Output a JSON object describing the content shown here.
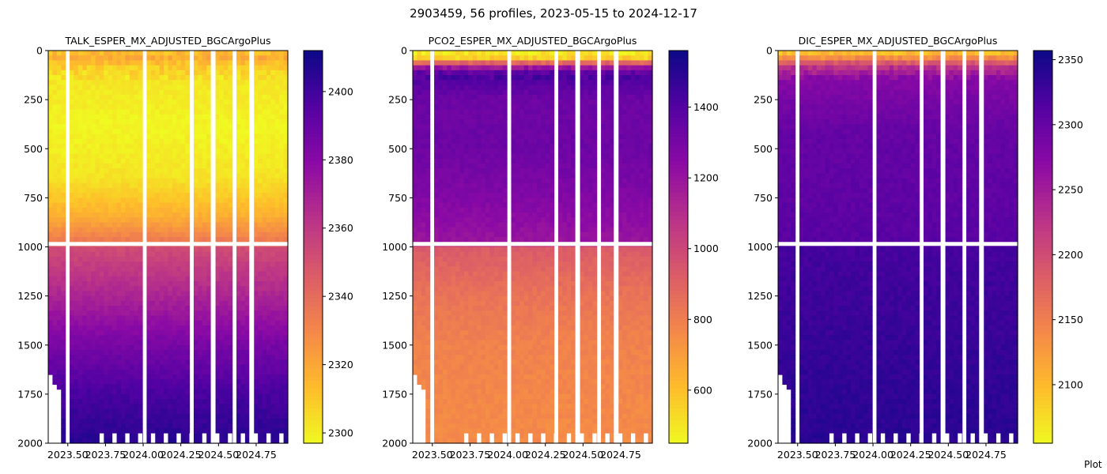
{
  "figure": {
    "suptitle": "2903459, 56 profiles, 2023-05-15 to 2024-12-17",
    "credit": "Plot"
  },
  "chart_data": [
    {
      "type": "heatmap",
      "title": "TALK_ESPER_MX_ADJUSTED_BGCArgoPlus",
      "xlabel": "",
      "ylabel": "",
      "x_range": [
        2023.37,
        2024.96
      ],
      "xticks": [
        2023.5,
        2023.75,
        2024.0,
        2024.25,
        2024.5,
        2024.75
      ],
      "xtick_labels": [
        "2023.50",
        "2023.75",
        "2024.00",
        "2024.25",
        "2024.50",
        "2024.75"
      ],
      "ylim": [
        2000,
        0
      ],
      "yticks": [
        0,
        250,
        500,
        750,
        1000,
        1250,
        1500,
        1750,
        2000
      ],
      "ytick_labels": [
        "0",
        "250",
        "500",
        "750",
        "1000",
        "1250",
        "1500",
        "1750",
        "2000"
      ],
      "colormap": "plasma_r",
      "colorbar_range": [
        2297,
        2412
      ],
      "colorbar_ticks": [
        2300,
        2320,
        2340,
        2360,
        2380,
        2400
      ],
      "colorbar_tick_labels": [
        "2300",
        "2320",
        "2340",
        "2360",
        "2380",
        "2400"
      ],
      "depth_profile": [
        {
          "depth": 0,
          "value": 2312
        },
        {
          "depth": 40,
          "value": 2318
        },
        {
          "depth": 80,
          "value": 2310
        },
        {
          "depth": 150,
          "value": 2302
        },
        {
          "depth": 400,
          "value": 2298
        },
        {
          "depth": 650,
          "value": 2303
        },
        {
          "depth": 850,
          "value": 2318
        },
        {
          "depth": 970,
          "value": 2335
        },
        {
          "depth": 1000,
          "value": 2352
        },
        {
          "depth": 1250,
          "value": 2368
        },
        {
          "depth": 1500,
          "value": 2385
        },
        {
          "depth": 1750,
          "value": 2398
        },
        {
          "depth": 2000,
          "value": 2406
        }
      ]
    },
    {
      "type": "heatmap",
      "title": "PCO2_ESPER_MX_ADJUSTED_BGCArgoPlus",
      "xlabel": "",
      "ylabel": "",
      "x_range": [
        2023.37,
        2024.96
      ],
      "xticks": [
        2023.5,
        2023.75,
        2024.0,
        2024.25,
        2024.5,
        2024.75
      ],
      "xtick_labels": [
        "2023.50",
        "2023.75",
        "2024.00",
        "2024.25",
        "2024.50",
        "2024.75"
      ],
      "ylim": [
        2000,
        0
      ],
      "yticks": [
        0,
        250,
        500,
        750,
        1000,
        1250,
        1500,
        1750,
        2000
      ],
      "ytick_labels": [
        "0",
        "250",
        "500",
        "750",
        "1000",
        "1250",
        "1500",
        "1750",
        "2000"
      ],
      "colormap": "plasma_r",
      "colorbar_range": [
        450,
        1560
      ],
      "colorbar_ticks": [
        600,
        800,
        1000,
        1200,
        1400
      ],
      "colorbar_tick_labels": [
        "600",
        "800",
        "1000",
        "1200",
        "1400"
      ],
      "depth_profile": [
        {
          "depth": 0,
          "value": 470
        },
        {
          "depth": 40,
          "value": 560
        },
        {
          "depth": 80,
          "value": 1150
        },
        {
          "depth": 120,
          "value": 1420
        },
        {
          "depth": 250,
          "value": 1330
        },
        {
          "depth": 500,
          "value": 1330
        },
        {
          "depth": 750,
          "value": 1270
        },
        {
          "depth": 970,
          "value": 1200
        },
        {
          "depth": 1000,
          "value": 930
        },
        {
          "depth": 1250,
          "value": 840
        },
        {
          "depth": 1500,
          "value": 790
        },
        {
          "depth": 1750,
          "value": 770
        },
        {
          "depth": 2000,
          "value": 760
        }
      ]
    },
    {
      "type": "heatmap",
      "title": "DIC_ESPER_MX_ADJUSTED_BGCArgoPlus",
      "xlabel": "",
      "ylabel": "",
      "x_range": [
        2023.37,
        2024.96
      ],
      "xticks": [
        2023.5,
        2023.75,
        2024.0,
        2024.25,
        2024.5,
        2024.75
      ],
      "xtick_labels": [
        "2023.50",
        "2023.75",
        "2024.00",
        "2024.25",
        "2024.50",
        "2024.75"
      ],
      "ylim": [
        2000,
        0
      ],
      "yticks": [
        0,
        250,
        500,
        750,
        1000,
        1250,
        1500,
        1750,
        2000
      ],
      "ytick_labels": [
        "0",
        "250",
        "500",
        "750",
        "1000",
        "1250",
        "1500",
        "1750",
        "2000"
      ],
      "colormap": "plasma_r",
      "colorbar_range": [
        2055,
        2357
      ],
      "colorbar_ticks": [
        2100,
        2150,
        2200,
        2250,
        2300,
        2350
      ],
      "colorbar_tick_labels": [
        "2100",
        "2150",
        "2200",
        "2250",
        "2300",
        "2350"
      ],
      "depth_profile": [
        {
          "depth": 0,
          "value": 2080
        },
        {
          "depth": 40,
          "value": 2140
        },
        {
          "depth": 80,
          "value": 2225
        },
        {
          "depth": 150,
          "value": 2275
        },
        {
          "depth": 400,
          "value": 2300
        },
        {
          "depth": 750,
          "value": 2305
        },
        {
          "depth": 970,
          "value": 2310
        },
        {
          "depth": 1000,
          "value": 2322
        },
        {
          "depth": 1500,
          "value": 2332
        },
        {
          "depth": 2000,
          "value": 2340
        }
      ]
    }
  ]
}
